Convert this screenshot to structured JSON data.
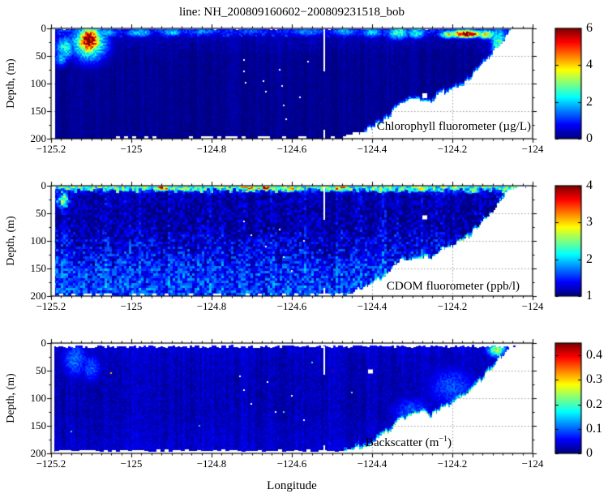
{
  "title": "line: NH_200809160602−200809231518_bob",
  "chart_data": {
    "type": "heatmap",
    "colormap": "jet",
    "x_axis": {
      "label": "Longitude",
      "range": [
        -125.2,
        -124
      ],
      "ticks": [
        "−125.2",
        "−125",
        "−124.8",
        "−124.6",
        "−124.4",
        "−124.2",
        "−124"
      ],
      "tick_values": [
        -125.2,
        -125,
        -124.8,
        -124.6,
        -124.4,
        -124.2,
        -124
      ],
      "minor_step": 0.025
    },
    "y_axis": {
      "label": "Depth, (m)",
      "range": [
        0,
        200
      ],
      "ticks": [
        "0",
        "50",
        "100",
        "150",
        "200"
      ],
      "tick_values": [
        0,
        50,
        100,
        150,
        200
      ],
      "minor_step": 25
    },
    "grid": {
      "style": "dotted",
      "x_values": [
        -125,
        -124.8,
        -124.6,
        -124.4,
        -124.2
      ],
      "y_values": [
        50,
        100,
        150
      ]
    },
    "gap_line_lon": -124.52,
    "lon_min": -125.19,
    "seafloor_profile": [
      [
        -125.2,
        200
      ],
      [
        -124.48,
        200
      ],
      [
        -124.44,
        191
      ],
      [
        -124.405,
        182
      ],
      [
        -124.375,
        168
      ],
      [
        -124.35,
        154
      ],
      [
        -124.335,
        136
      ],
      [
        -124.3,
        132
      ],
      [
        -124.27,
        127
      ],
      [
        -124.25,
        131
      ],
      [
        -124.225,
        117
      ],
      [
        -124.195,
        107
      ],
      [
        -124.17,
        98
      ],
      [
        -124.15,
        86
      ],
      [
        -124.13,
        70
      ],
      [
        -124.11,
        52
      ],
      [
        -124.095,
        40
      ],
      [
        -124.08,
        26
      ],
      [
        -124.065,
        14
      ],
      [
        -124.05,
        4
      ],
      [
        -124.03,
        0
      ]
    ],
    "panels": [
      {
        "name": "chlorophyll",
        "label": "Chlorophyll fluorometer (µg/L)",
        "label_parts": {
          "pre": "Chlorophyll fluorometer (µg/L)",
          "sup": "",
          "post": ""
        },
        "range": [
          0,
          6
        ],
        "colorbar": {
          "ticks": [
            "0",
            "2",
            "4",
            "6"
          ],
          "tick_values": [
            0,
            2,
            4,
            6
          ]
        },
        "depth_profile": [
          [
            0,
            0.8
          ],
          [
            8,
            0.55
          ],
          [
            20,
            0.3
          ],
          [
            50,
            0.14
          ],
          [
            200,
            0.1
          ]
        ],
        "noise": 0.18,
        "cell": 2,
        "streak": 0.1,
        "streak2": 0.05,
        "noise_depth": [
          1.4,
          0.7,
          60
        ],
        "lon_max": -124.045,
        "top_gap": 1.5,
        "surface": [
          [
            -125.19,
            -124.05,
            0,
            9,
            0.85,
            0.45
          ]
        ],
        "blobs": [
          [
            -125.165,
            35,
            0.018,
            16,
            2.3
          ],
          [
            -125.175,
            55,
            0.012,
            10,
            1.8
          ],
          [
            -125.105,
            22,
            0.02,
            17,
            6.2
          ],
          [
            -125.105,
            25,
            0.032,
            24,
            3.4
          ],
          [
            -125.06,
            8,
            0.02,
            6,
            2.0
          ],
          [
            -124.98,
            8,
            0.025,
            6,
            2.1
          ],
          [
            -124.9,
            7,
            0.022,
            6,
            1.9
          ],
          [
            -124.82,
            6,
            0.03,
            5,
            1.5
          ],
          [
            -124.7,
            5,
            0.03,
            5,
            1.3
          ],
          [
            -124.56,
            6,
            0.04,
            6,
            1.5
          ],
          [
            -124.47,
            6,
            0.025,
            6,
            1.8
          ],
          [
            -124.4,
            7,
            0.02,
            7,
            2.0
          ],
          [
            -124.335,
            8,
            0.022,
            9,
            2.5
          ],
          [
            -124.29,
            8,
            0.018,
            8,
            2.3
          ],
          [
            -124.21,
            11,
            0.015,
            5,
            3.5
          ],
          [
            -124.165,
            10,
            0.03,
            5,
            6.0
          ],
          [
            -124.115,
            11,
            0.018,
            6,
            3.6
          ],
          [
            -124.085,
            25,
            0.014,
            22,
            2.6
          ]
        ],
        "edge_band": {
          "lon0": -124.42,
          "lon1": -124.04,
          "w": 9,
          "v": 1.9
        },
        "bright_dots": [],
        "dropout_squares": [
          [
            -124.268,
            122,
            0.012,
            9
          ]
        ],
        "dropout_dots": [
          [
            -124.72,
            58
          ],
          [
            -124.72,
            78
          ],
          [
            -124.715,
            98
          ],
          [
            -124.67,
            95
          ],
          [
            -124.665,
            115
          ],
          [
            -124.63,
            75
          ],
          [
            -124.625,
            105
          ],
          [
            -124.62,
            140
          ],
          [
            -124.615,
            165
          ],
          [
            -124.58,
            125
          ],
          [
            -124.56,
            60
          ]
        ],
        "gap_segments": [
          [
            0,
            78
          ],
          [
            184,
            200
          ]
        ]
      },
      {
        "name": "cdom",
        "label": "CDOM fluorometer (ppb/l)",
        "label_parts": {
          "pre": "CDOM fluorometer (ppb/l)",
          "sup": "",
          "post": ""
        },
        "range": [
          1,
          4
        ],
        "colorbar": {
          "ticks": [
            "1",
            "2",
            "3",
            "4"
          ],
          "tick_values": [
            1,
            2,
            3,
            4
          ]
        },
        "depth_profile": [
          [
            0,
            2.0
          ],
          [
            6,
            1.55
          ],
          [
            18,
            1.16
          ],
          [
            70,
            1.12
          ],
          [
            110,
            1.3
          ],
          [
            150,
            1.5
          ],
          [
            200,
            1.6
          ]
        ],
        "noise": 0.27,
        "cell": 3,
        "streak": 0.08,
        "streak2": 0.1,
        "noise_depth": [
          0.7,
          1.35,
          120
        ],
        "lon_max": -124.02,
        "top_gap": 1.5,
        "surface": [
          [
            -125.19,
            -124.02,
            0,
            7,
            2.25,
            0.5
          ]
        ],
        "blobs": [
          [
            -125.17,
            25,
            0.02,
            18,
            2.2
          ],
          [
            -124.92,
            4,
            0.03,
            5,
            3.2
          ],
          [
            -124.86,
            5,
            0.025,
            5,
            2.6
          ],
          [
            -124.7,
            4,
            0.04,
            4,
            3.3
          ],
          [
            -124.665,
            4,
            0.012,
            3,
            3.9
          ],
          [
            -124.6,
            5,
            0.035,
            5,
            3.0
          ],
          [
            -124.48,
            5,
            0.035,
            5,
            3.1
          ],
          [
            -124.38,
            6,
            0.03,
            6,
            2.6
          ],
          [
            -124.28,
            6,
            0.03,
            6,
            2.4
          ],
          [
            -124.15,
            8,
            0.03,
            7,
            2.3
          ],
          [
            -124.05,
            15,
            0.02,
            14,
            2.5
          ]
        ],
        "edge_band": {
          "lon0": -124.5,
          "lon1": -124.02,
          "w": 16,
          "v": 1.95
        },
        "bright_dots": [],
        "dropout_squares": [
          [
            -124.268,
            57,
            0.012,
            8
          ]
        ],
        "dropout_dots": [
          [
            -124.72,
            65
          ],
          [
            -124.7,
            90
          ],
          [
            -124.665,
            110
          ],
          [
            -124.63,
            80
          ],
          [
            -124.62,
            130
          ],
          [
            -124.6,
            155
          ],
          [
            -124.57,
            100
          ]
        ],
        "gap_segments": [
          [
            0,
            62
          ],
          [
            186,
            200
          ]
        ]
      },
      {
        "name": "backscatter",
        "label": "Backscatter (m⁻¹)",
        "label_parts": {
          "pre": "Backscatter (m",
          "sup": "−1",
          "post": ")"
        },
        "range": [
          0,
          0.45
        ],
        "colorbar": {
          "ticks": [
            "0",
            "0.1",
            "0.2",
            "0.3",
            "0.4"
          ],
          "tick_values": [
            0,
            0.1,
            0.2,
            0.3,
            0.4
          ]
        },
        "depth_profile": [
          [
            0,
            0.055
          ],
          [
            12,
            0.035
          ],
          [
            40,
            0.028
          ],
          [
            120,
            0.025
          ],
          [
            200,
            0.038
          ]
        ],
        "noise": 0.016,
        "cell": 2,
        "streak": 0.008,
        "streak2": 0.006,
        "noise_depth": [
          1.0,
          1.1,
          100
        ],
        "lon_max": -124.03,
        "top_gap": 6,
        "bottom_limit": 195,
        "surface": [],
        "blobs": [
          [
            -125.14,
            30,
            0.025,
            25,
            0.1
          ],
          [
            -125.1,
            45,
            0.02,
            20,
            0.09
          ],
          [
            -124.09,
            12,
            0.018,
            10,
            0.22
          ],
          [
            -124.3,
            125,
            0.04,
            20,
            0.09
          ],
          [
            -124.2,
            80,
            0.05,
            30,
            0.085
          ]
        ],
        "edge_band": {
          "lon0": -124.47,
          "lon1": -124.08,
          "w": 10,
          "v": 0.2
        },
        "bright_dots": [
          [
            -125.05,
            54,
            0.32
          ],
          [
            -124.5,
            50,
            0.45
          ],
          [
            -124.62,
            125,
            0.18
          ],
          [
            -124.45,
            90,
            0.2
          ],
          [
            -124.83,
            150,
            0.15
          ],
          [
            -125.15,
            160,
            0.16
          ],
          [
            -124.55,
            35,
            0.18
          ]
        ],
        "dropout_squares": [
          [
            -124.405,
            52,
            0.012,
            8
          ]
        ],
        "dropout_dots": [
          [
            -124.73,
            60
          ],
          [
            -124.72,
            85
          ],
          [
            -124.7,
            110
          ],
          [
            -124.66,
            70
          ],
          [
            -124.64,
            125
          ],
          [
            -124.6,
            95
          ],
          [
            -124.57,
            140
          ]
        ],
        "gap_segments": [
          [
            6,
            58
          ],
          [
            186,
            195
          ]
        ]
      }
    ]
  }
}
